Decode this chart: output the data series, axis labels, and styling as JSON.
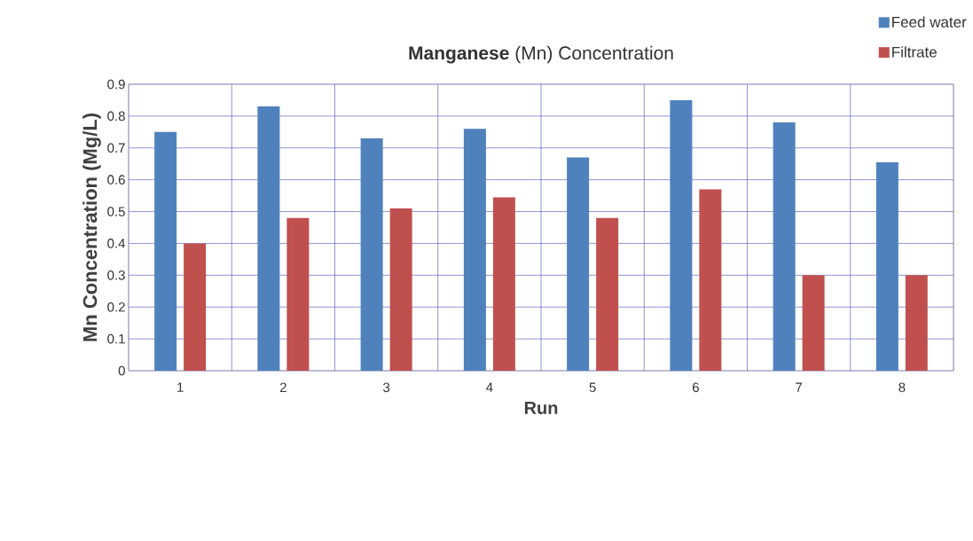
{
  "chart_data": {
    "type": "bar",
    "title": "**Manganese** (Mn)  Concentration",
    "xlabel": "Run",
    "ylabel": "Mn  Concentration (Mg/L)",
    "categories": [
      "1",
      "2",
      "3",
      "4",
      "5",
      "6",
      "7",
      "8"
    ],
    "series": [
      {
        "name": "Feed water",
        "color": "#4f81bd",
        "values": [
          0.75,
          0.83,
          0.73,
          0.76,
          0.67,
          0.85,
          0.78,
          0.655
        ]
      },
      {
        "name": "Filtrate",
        "color": "#c0504d",
        "values": [
          0.4,
          0.48,
          0.51,
          0.545,
          0.48,
          0.57,
          0.3,
          0.3
        ]
      }
    ],
    "ylim": [
      0,
      0.9
    ],
    "yticks": [
      0,
      0.1,
      0.2,
      0.3,
      0.4,
      0.5,
      0.6,
      0.7,
      0.8,
      0.9
    ],
    "grid": true,
    "legend": "top right"
  }
}
